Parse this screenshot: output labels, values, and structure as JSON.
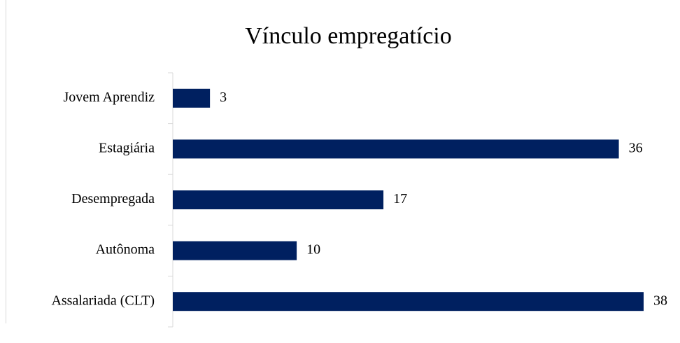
{
  "chart_data": {
    "type": "bar",
    "orientation": "horizontal",
    "title": "Vínculo empregatício",
    "categories": [
      "Jovem Aprendiz",
      "Estagiária",
      "Desempregada",
      "Autônoma",
      "Assalariada (CLT)"
    ],
    "values": [
      3,
      36,
      17,
      10,
      38
    ],
    "color": "#002060"
  }
}
